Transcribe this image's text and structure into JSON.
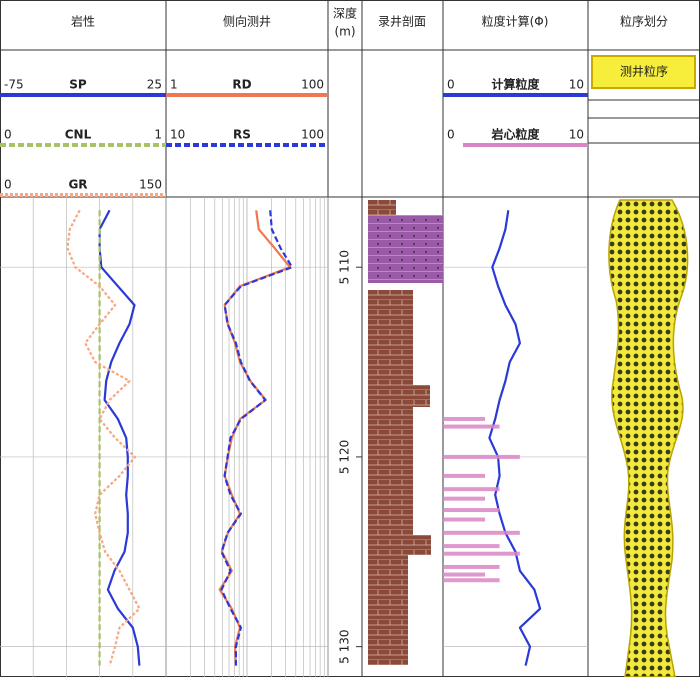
{
  "chart_data": {
    "type": "well-log",
    "ylabel": [
      "深度",
      "(m)"
    ],
    "ylim": [
      5106.3,
      5131.6
    ],
    "yticks": [
      {
        "value": 5110,
        "label": "5 110"
      },
      {
        "value": 5120,
        "label": "5 120"
      },
      {
        "value": 5130,
        "label": "5 130"
      }
    ],
    "depths": [
      5107,
      5108,
      5109,
      5110,
      5111,
      5112,
      5113,
      5114,
      5115,
      5116,
      5117,
      5118,
      5119,
      5120,
      5121,
      5122,
      5123,
      5124,
      5125,
      5126,
      5127,
      5128,
      5129,
      5130,
      5131
    ],
    "tracks": [
      {
        "title": "岩性",
        "log": false,
        "series": [
          {
            "name": "SP",
            "color": "#2b3ad6",
            "style": "solid",
            "xlim": [
              -75,
              25
            ],
            "values": [
              -9,
              -15,
              -15,
              -14,
              -4,
              6,
              3,
              -3,
              -8,
              -11,
              -12,
              -4,
              1,
              2,
              2,
              1,
              2,
              2,
              0,
              -6,
              -10,
              -4,
              5,
              8,
              9
            ]
          },
          {
            "name": "CNL",
            "color": "#a9c26a",
            "style": "dashed",
            "xlim": [
              0,
              1
            ],
            "values": [
              0.6,
              0.6,
              0.6,
              0.6,
              0.6,
              0.6,
              0.6,
              0.6,
              0.6,
              0.6,
              0.6,
              0.6,
              0.6,
              0.6,
              0.6,
              0.6,
              0.6,
              0.6,
              0.6,
              0.6,
              0.6,
              0.6,
              0.6,
              0.6,
              0.6
            ]
          },
          {
            "name": "GR",
            "color": "#f5a882",
            "style": "dotted",
            "xlim": [
              0,
              150
            ],
            "values": [
              72,
              63,
              61,
              68,
              90,
              104,
              90,
              77,
              86,
              117,
              99,
              90,
              104,
              122,
              108,
              90,
              86,
              90,
              95,
              108,
              117,
              126,
              108,
              104,
              99
            ]
          }
        ]
      },
      {
        "title": "侧向测井",
        "log": true,
        "series": [
          {
            "name": "RD",
            "color": "#f07850",
            "style": "solid",
            "xlim": [
              1,
              100
            ],
            "values": [
              13,
              14,
              22,
              34,
              8.2,
              5.3,
              5.8,
              7.1,
              8.2,
              11,
              17,
              8.2,
              6.5,
              5.8,
              5.3,
              6.5,
              8.2,
              5.8,
              4.9,
              6.5,
              4.6,
              6.5,
              8.2,
              7.1,
              7.3
            ]
          },
          {
            "name": "RS",
            "color": "#2b3ad6",
            "style": "dashed",
            "xlim": [
              10,
              100
            ],
            "values": [
              44,
              45,
              51,
              60,
              29,
              23,
              24,
              27,
              29,
              33,
              41,
              29,
              25,
              24,
              23,
              25,
              29,
              24,
              22,
              25,
              22,
              25,
              29,
              27,
              27
            ]
          }
        ]
      },
      {
        "title": "粒度计算(Φ)",
        "log": false,
        "series": [
          {
            "name": "计算粒度",
            "color": "#2b3ad6",
            "style": "solid",
            "xlim": [
              0,
              10
            ],
            "values": [
              4.5,
              4.3,
              3.9,
              3.4,
              3.8,
              4.3,
              5.0,
              5.3,
              4.6,
              4.3,
              3.9,
              3.6,
              3.2,
              3.8,
              3.9,
              3.6,
              3.9,
              4.3,
              5.0,
              5.3,
              6.3,
              6.7,
              5.3,
              6.0,
              5.7
            ]
          },
          {
            "name": "岩心粒度",
            "color": "#d986c4",
            "style": "bars",
            "xlim": [
              0,
              10
            ],
            "depths": [
              5118.0,
              5118.4,
              5120.0,
              5121.0,
              5121.7,
              5122.2,
              5122.8,
              5123.3,
              5124.0,
              5124.7,
              5125.1,
              5125.8,
              5126.2,
              5126.5
            ],
            "values": [
              2.9,
              3.9,
              5.3,
              2.9,
              3.9,
              2.9,
              3.9,
              2.9,
              5.3,
              3.9,
              5.3,
              3.9,
              2.9,
              3.9
            ]
          }
        ]
      }
    ],
    "lithology_title": "录井剖面",
    "sequence_title": "粒序划分",
    "sequence_label": "测井粒序"
  }
}
